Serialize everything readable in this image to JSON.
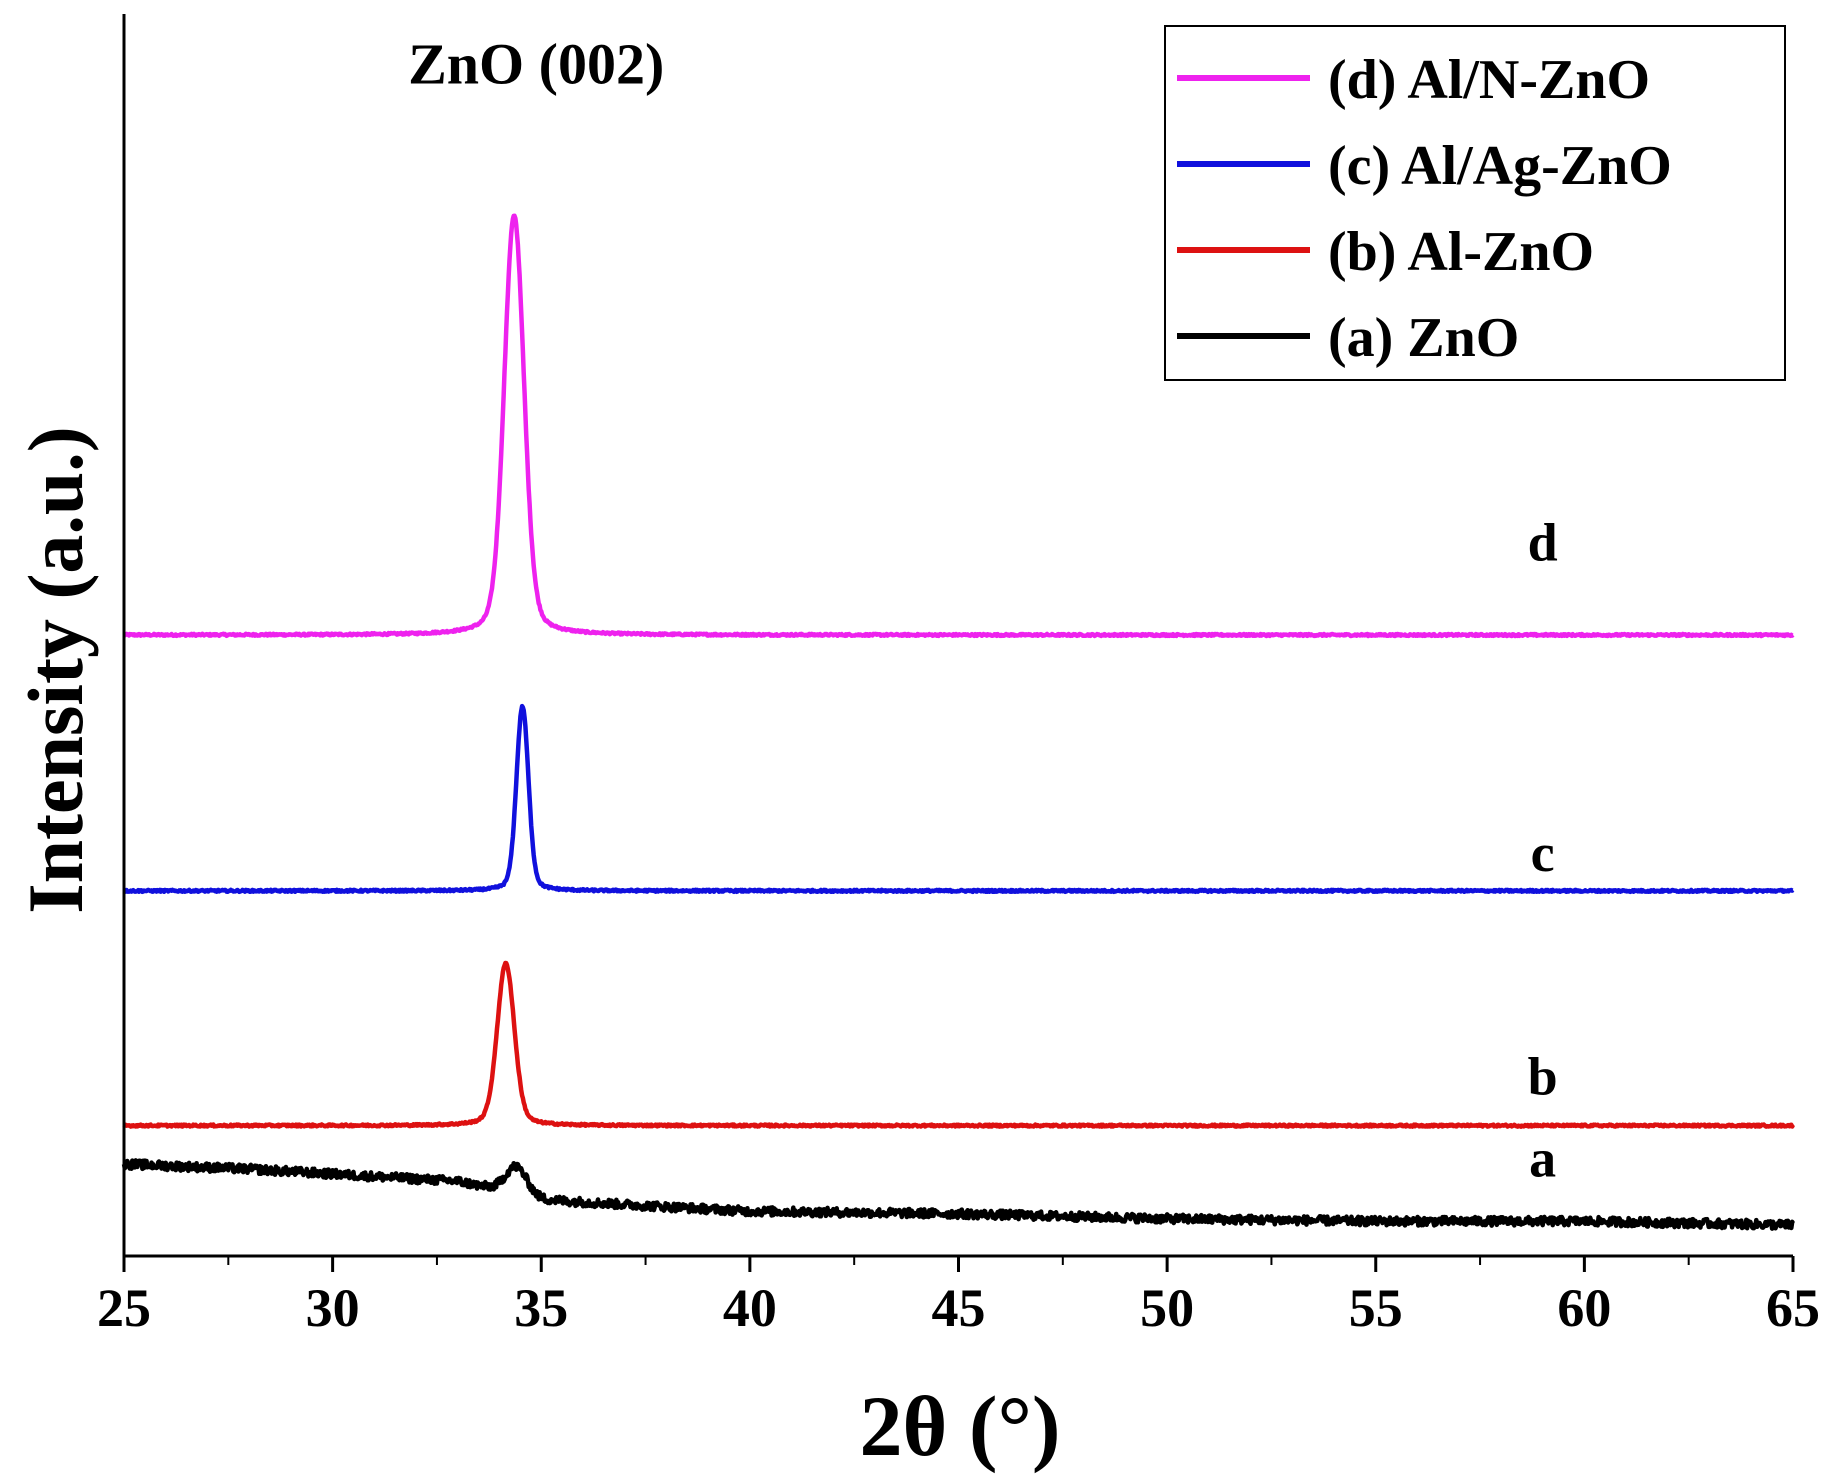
{
  "chart_data": {
    "type": "line",
    "title": "",
    "xlabel": "2θ (°)",
    "ylabel": "Intensity (a.u.)",
    "xlim": [
      25,
      65
    ],
    "ylim": [
      0,
      1
    ],
    "xticks": [
      "25",
      "30",
      "35",
      "40",
      "45",
      "50",
      "55",
      "60",
      "65"
    ],
    "yticks_shown": false,
    "grid": false,
    "legend_position": "top-right",
    "annotations": [
      {
        "text": "ZnO (002)",
        "x": 34.4,
        "y": 0.96
      }
    ],
    "series": [
      {
        "name": "(d) Al/N-ZnO",
        "label": "d",
        "color": "#ee22ee",
        "label_x": 59.0,
        "label_y": 0.56,
        "baseline": [
          [
            25,
            0.5
          ],
          [
            33,
            0.5
          ],
          [
            65,
            0.5
          ]
        ],
        "peaks": [
          {
            "center": 34.35,
            "height": 0.375,
            "width": 0.23
          }
        ]
      },
      {
        "name": "(c) Al/Ag-ZnO",
        "label": "c",
        "color": "#1010dd",
        "label_x": 59.0,
        "label_y": 0.31,
        "baseline": [
          [
            25,
            0.294
          ],
          [
            65,
            0.294
          ]
        ],
        "peaks": [
          {
            "center": 34.55,
            "height": 0.165,
            "width": 0.14
          }
        ]
      },
      {
        "name": "(b) Al-ZnO",
        "label": "b",
        "color": "#dd1111",
        "label_x": 59.0,
        "label_y": 0.13,
        "baseline": [
          [
            25,
            0.105
          ],
          [
            65,
            0.105
          ]
        ],
        "peaks": [
          {
            "center": 34.15,
            "height": 0.145,
            "width": 0.2
          }
        ]
      },
      {
        "name": "(a) ZnO",
        "label": "a",
        "color": "#000000",
        "label_x": 59.0,
        "label_y": 0.064,
        "baseline": [
          [
            25,
            0.074
          ],
          [
            28,
            0.07
          ],
          [
            33,
            0.06
          ],
          [
            35,
            0.045
          ],
          [
            40,
            0.036
          ],
          [
            45,
            0.034
          ],
          [
            50,
            0.03
          ],
          [
            55,
            0.028
          ],
          [
            60,
            0.028
          ],
          [
            65,
            0.025
          ]
        ],
        "peaks": [
          {
            "center": 34.4,
            "height": 0.025,
            "width": 0.25
          }
        ]
      }
    ]
  }
}
